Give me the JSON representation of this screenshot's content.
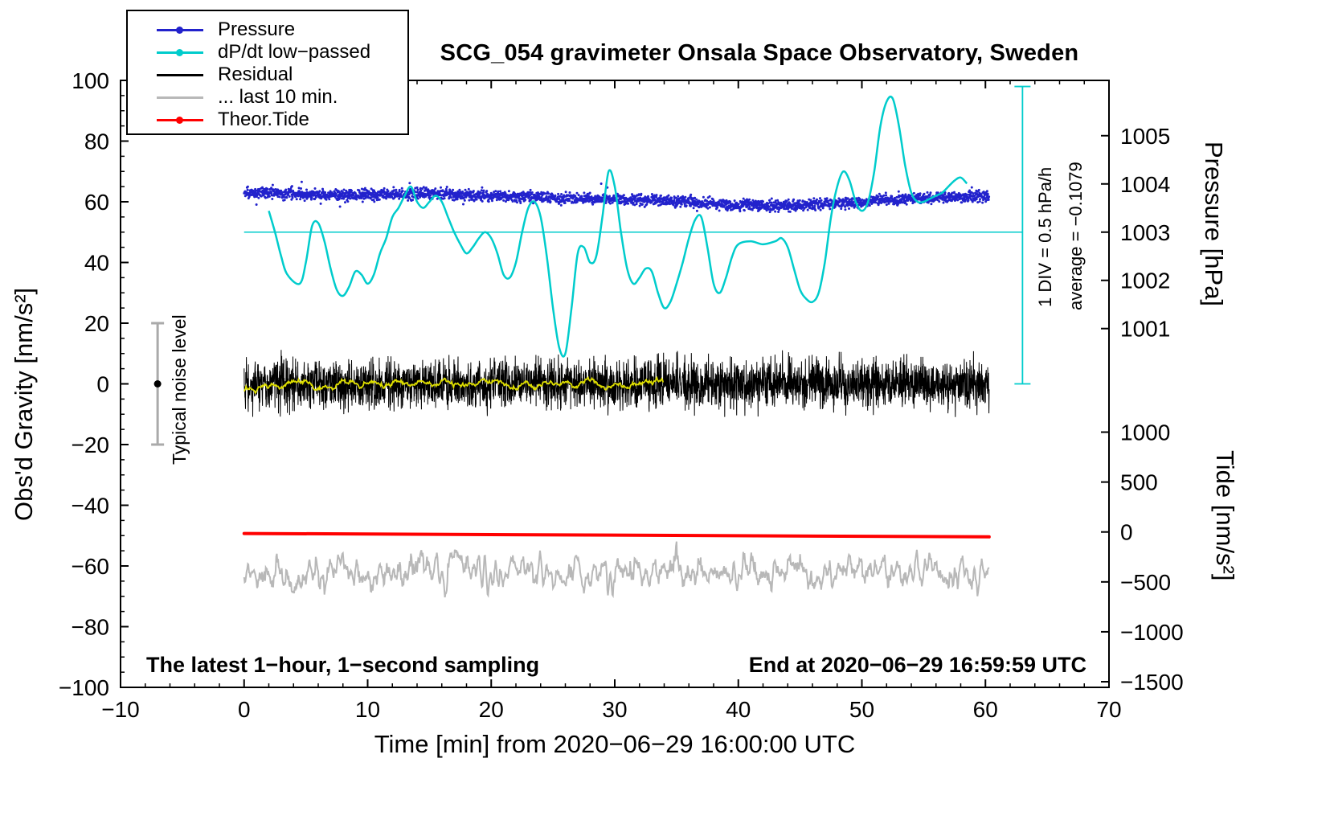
{
  "title": "SCG_054 gravimeter Onsala Space Observatory, Sweden",
  "annotations": {
    "footer_left": "The latest 1−hour, 1−second sampling",
    "footer_right": "End at 2020−06−29 16:59:59 UTC",
    "scalebar_line1": "1 DIV = 0.5 hPa/h",
    "scalebar_line2": "average = −0.1079",
    "noise_label": "Typical noise level"
  },
  "axis_labels": {
    "x": "Time [min] from 2020−06−29 16:00:00 UTC",
    "y_left": "Obs'd Gravity [nm/s²]",
    "y_right_top": "Pressure [hPa]",
    "y_right_bottom": "Tide [nm/s²]"
  },
  "legend": [
    {
      "label": "Pressure",
      "color": "#2222cc",
      "style": "dotline"
    },
    {
      "label": "dP/dt low−passed",
      "color": "#00cccc",
      "style": "dotline"
    },
    {
      "label": "Residual",
      "color": "#000000",
      "style": "line"
    },
    {
      "label": "... last 10 min.",
      "color": "#b8b8b8",
      "style": "line"
    },
    {
      "label": "Theor.Tide",
      "color": "#ff0000",
      "style": "dotline"
    }
  ],
  "chart_data": {
    "type": "line",
    "title": "SCG_054 gravimeter Onsala Space Observatory, Sweden",
    "x_axis": {
      "label": "Time [min] from 2020-06-29 16:00:00 UTC",
      "range": [
        -10,
        70
      ],
      "major_ticks": [
        -10,
        0,
        10,
        20,
        30,
        40,
        50,
        60,
        70
      ],
      "minor_step": 2
    },
    "y_axis_left": {
      "label": "Obs'd Gravity [nm/s2]",
      "range": [
        -100,
        100
      ],
      "major_ticks": [
        -100,
        -80,
        -60,
        -40,
        -20,
        0,
        20,
        40,
        60,
        80,
        100
      ],
      "minor_step": 5
    },
    "y_axis_pressure": {
      "label": "Pressure [hPa]",
      "ticks": [
        1005,
        1004,
        1003,
        1002,
        1001
      ],
      "gravity_at_1003": 50,
      "gravity_per_hpa": 15.89
    },
    "y_axis_tide": {
      "label": "Tide [nm/s2]",
      "ticks": [
        1000,
        500,
        0,
        -500,
        -1000,
        -1500
      ],
      "gravity_at_0": -48.8,
      "gravity_per_unit": 0.0329
    },
    "series": {
      "pressure": {
        "name": "Pressure",
        "unit": "hPa",
        "color": "#2222cc",
        "scatter_hpa": 0.055,
        "x_min": [
          0,
          3,
          6,
          9,
          12,
          15,
          18,
          21,
          24,
          27,
          30,
          33,
          36,
          39,
          42,
          45,
          48,
          51,
          54,
          57,
          60
        ],
        "values_hpa": [
          1003.82,
          1003.8,
          1003.78,
          1003.76,
          1003.78,
          1003.8,
          1003.77,
          1003.74,
          1003.73,
          1003.7,
          1003.68,
          1003.66,
          1003.62,
          1003.57,
          1003.54,
          1003.56,
          1003.6,
          1003.65,
          1003.7,
          1003.73,
          1003.74
        ]
      },
      "dpdt_lowpassed": {
        "name": "dP/dt low-passed",
        "color": "#00cccc",
        "reference_gravity": 50,
        "x_min": [
          2.0,
          2.5,
          3.0,
          3.5,
          4.5,
          5.0,
          5.5,
          6.0,
          6.5,
          7.0,
          7.5,
          8.0,
          8.5,
          9.0,
          9.5,
          10.0,
          10.5,
          11.0,
          11.5,
          12.0,
          12.5,
          13.0,
          13.5,
          14.0,
          14.5,
          15.0,
          15.5,
          16.0,
          16.5,
          17.0,
          17.5,
          18.0,
          18.5,
          19.0,
          19.5,
          20.0,
          20.5,
          21.0,
          21.5,
          22.0,
          22.5,
          23.0,
          23.5,
          24.0,
          24.5,
          25.0,
          25.5,
          26.0,
          26.5,
          27.0,
          27.5,
          28.0,
          28.5,
          29.0,
          29.5,
          30.0,
          30.5,
          31.0,
          31.5,
          32.0,
          32.5,
          33.0,
          33.5,
          34.0,
          34.5,
          35.0,
          35.5,
          36.0,
          36.5,
          37.0,
          37.5,
          38.0,
          38.5,
          39.0,
          39.5,
          40.0,
          41.0,
          42.0,
          43.0,
          43.5,
          44.0,
          44.5,
          45.0,
          45.5,
          46.0,
          46.5,
          47.0,
          47.5,
          48.0,
          48.5,
          49.0,
          49.5,
          50.0,
          50.5,
          51.0,
          51.5,
          52.0,
          52.5,
          53.0,
          53.5,
          54.0,
          54.5,
          55.0,
          55.5,
          56.0,
          56.5,
          57.0,
          57.5,
          58.0,
          58.5
        ],
        "gravity": [
          57,
          50,
          42,
          36,
          33,
          40,
          52,
          53,
          47,
          38,
          31,
          29,
          32,
          37,
          36,
          33,
          36,
          43,
          48,
          55,
          58,
          62,
          65,
          60,
          58,
          60,
          62,
          60,
          55,
          50,
          46,
          43,
          45,
          48,
          50,
          48,
          43,
          36,
          35,
          40,
          50,
          58,
          60,
          55,
          42,
          25,
          12,
          10,
          25,
          43,
          45,
          40,
          42,
          55,
          70,
          65,
          50,
          38,
          33,
          35,
          38,
          37,
          30,
          25,
          27,
          33,
          40,
          48,
          54,
          55,
          45,
          33,
          30,
          35,
          42,
          46,
          47,
          46,
          47,
          48,
          45,
          38,
          31,
          28,
          27,
          30,
          40,
          55,
          65,
          70,
          67,
          60,
          57,
          60,
          70,
          85,
          93,
          94,
          85,
          72,
          63,
          60,
          60,
          61,
          62,
          63,
          65,
          67,
          68,
          66
        ]
      },
      "residual": {
        "name": "Residual",
        "color": "#000000",
        "mean_gravity": 0,
        "rms_gravity": 4,
        "x_range": [
          0,
          60.3
        ]
      },
      "residual_lowpass": {
        "name": "Residual low-passed overlay",
        "color": "#dede00",
        "mean_gravity": 0,
        "rms_gravity": 0.9,
        "x_range": [
          0,
          34
        ]
      },
      "last10": {
        "name": "... last 10 min.",
        "color": "#b8b8b8",
        "mean_gravity": -62,
        "rms_gravity": 2.8,
        "x_range": [
          0,
          60.3
        ]
      },
      "theor_tide": {
        "name": "Theor.Tide",
        "color": "#ff0000",
        "x_min": [
          0,
          60.3
        ],
        "tide_nms2": [
          -15,
          -49
        ]
      },
      "noise_bar": {
        "x_min": -7,
        "gravity_center": 0,
        "gravity_half_range": 20,
        "color": "#aaaaaa"
      }
    },
    "scalebar": {
      "x_min": 63,
      "gravity_top": 98,
      "gravity_bottom": 0,
      "div_label": "1 DIV = 0.5 hPa/h",
      "average": "−0.1079"
    }
  }
}
